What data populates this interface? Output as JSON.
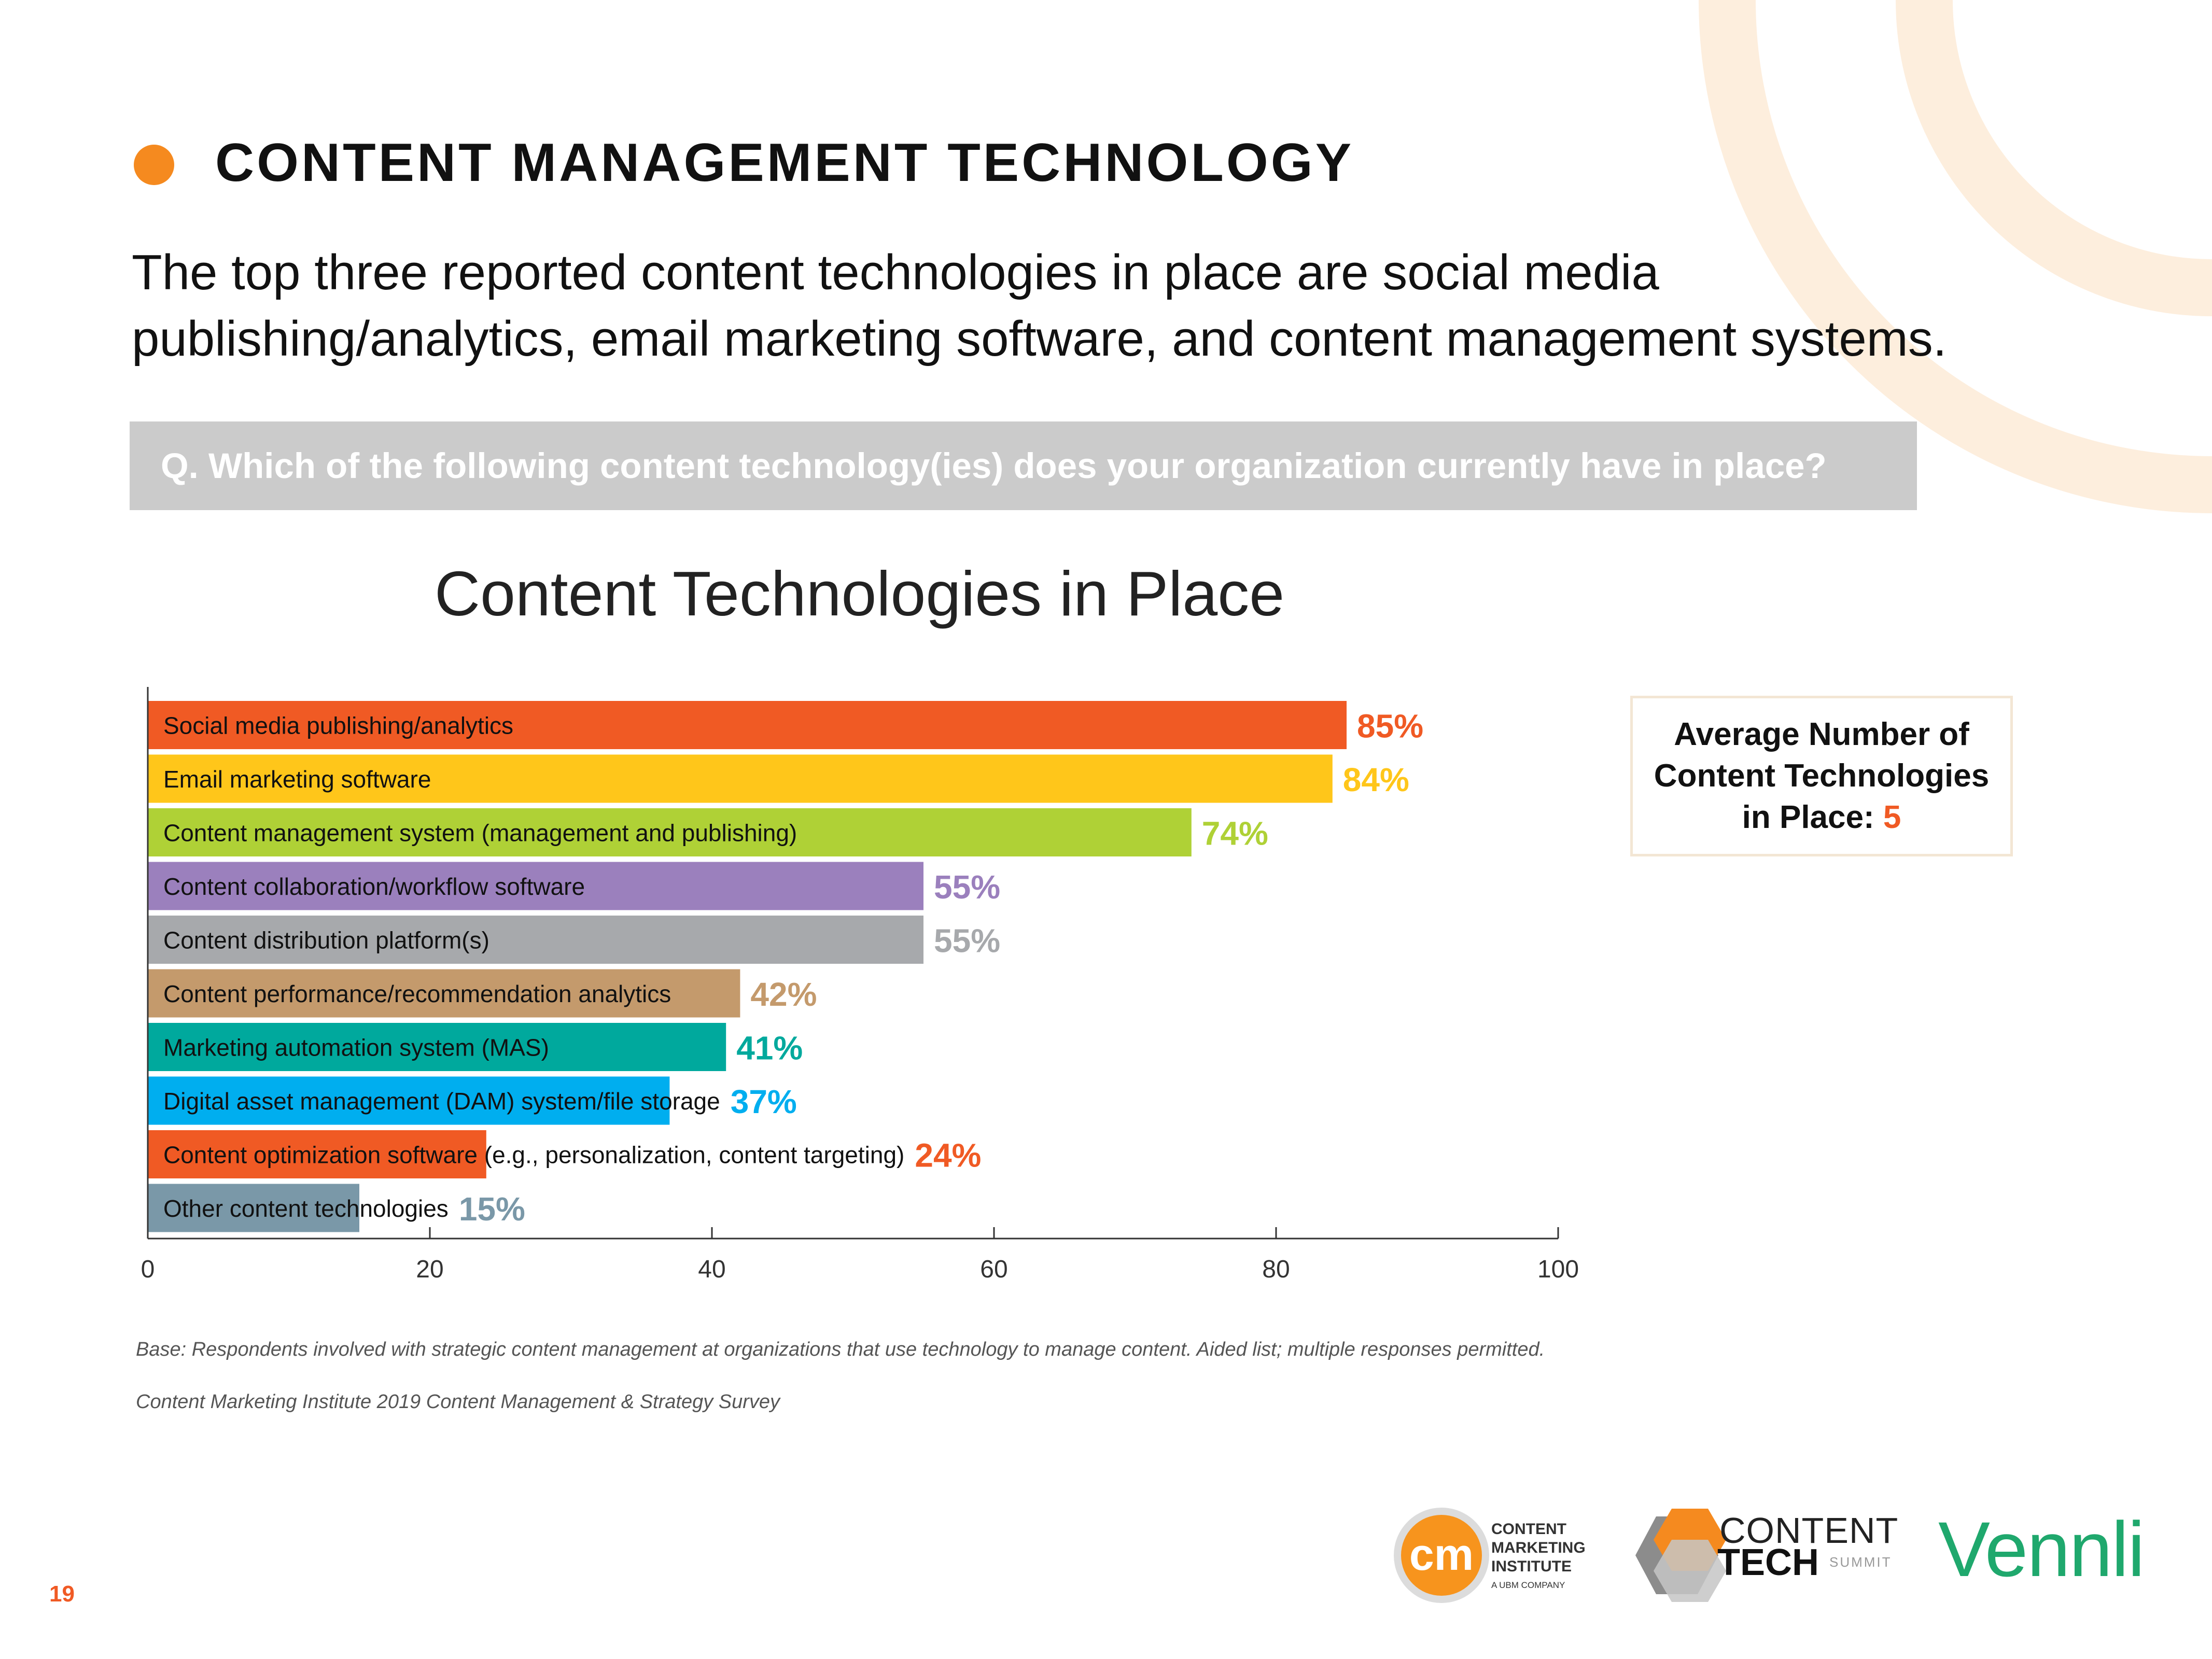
{
  "page": {
    "title": "CONTENT MANAGEMENT TECHNOLOGY",
    "intro_line1": "The top three reported content technologies in place are social media",
    "intro_line2": "publishing/analytics, email marketing software, and content management systems.",
    "question": "Q. Which of the following content technology(ies) does your organization currently have in place?",
    "page_number": "19"
  },
  "average_box": {
    "line1": "Average Number of",
    "line2": "Content Technologies",
    "line3": "in Place:",
    "value": "5"
  },
  "notes": {
    "base": "Base: Respondents involved with strategic content management at organizations that use technology to manage content. Aided list; multiple responses permitted.",
    "source": "Content Marketing Institute 2019 Content Management & Strategy Survey"
  },
  "logos": {
    "cmi_line1": "CONTENT",
    "cmi_line2": "MARKETING",
    "cmi_line3": "INSTITUTE",
    "cmi_sub": "A UBM COMPANY",
    "cmi_mark": "cm",
    "cts_line1": "CONTENT",
    "cts_line2": "TECH",
    "cts_line3": "SUMMIT",
    "vennli": "Vennli"
  },
  "colors": {
    "accent_orange": "#f58a1f",
    "value_orange": "#f05a24",
    "decor_arcs": "#fdeedd"
  },
  "chart_data": {
    "type": "bar",
    "orientation": "horizontal",
    "title": "Content Technologies in Place",
    "categories": [
      "Social media publishing/analytics",
      "Email marketing software",
      "Content management system (management and publishing)",
      "Content collaboration/workflow software",
      "Content distribution platform(s)",
      "Content performance/recommendation analytics",
      "Marketing automation system (MAS)",
      "Digital asset management (DAM) system/file storage",
      "Content optimization software (e.g., personalization, content targeting)",
      "Other content technologies"
    ],
    "values": [
      85,
      84,
      74,
      55,
      55,
      42,
      41,
      37,
      24,
      15
    ],
    "value_labels": [
      "85%",
      "84%",
      "74%",
      "55%",
      "55%",
      "42%",
      "41%",
      "37%",
      "24%",
      "15%"
    ],
    "bar_colors": [
      "#f05a24",
      "#ffc61a",
      "#afd136",
      "#9b80bd",
      "#a7a9ac",
      "#c49a6c",
      "#00a99d",
      "#00aeef",
      "#f05a24",
      "#7a98a8"
    ],
    "label_colors": [
      "#f05a24",
      "#ffc61a",
      "#afd136",
      "#9b80bd",
      "#a7a9ac",
      "#c49a6c",
      "#00a99d",
      "#00aeef",
      "#f05a24",
      "#7a98a8"
    ],
    "xlim": [
      0,
      100
    ],
    "xticks": [
      0,
      20,
      40,
      60,
      80,
      100
    ],
    "xlabel": "",
    "ylabel": "",
    "grid": false
  }
}
